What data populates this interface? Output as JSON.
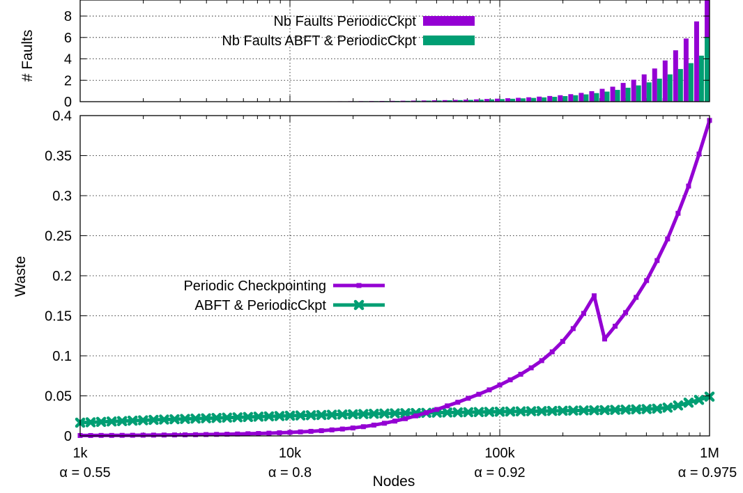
{
  "colors": {
    "purple": "#9400d3",
    "green": "#009e73"
  },
  "chart_data": [
    {
      "type": "bar",
      "ylabel": "# Faults",
      "ylim": [
        0,
        9.5
      ],
      "yticks": [
        "0",
        "2",
        "4",
        "6",
        "8"
      ],
      "x_log": true,
      "xlim": [
        1000,
        1000000
      ],
      "grid": true,
      "legend_position": "top-center",
      "x": [
        1000,
        1122,
        1259,
        1413,
        1585,
        1778,
        1995,
        2239,
        2512,
        2818,
        3162,
        3548,
        3981,
        4467,
        5012,
        5623,
        6310,
        7079,
        7943,
        8913,
        10000,
        11220,
        12589,
        14125,
        15849,
        17783,
        19953,
        22387,
        25119,
        28184,
        31623,
        35481,
        39811,
        44668,
        50119,
        56234,
        63096,
        70795,
        79433,
        89125,
        100000,
        112202,
        125893,
        141254,
        158489,
        177828,
        199526,
        223872,
        251189,
        281838,
        316228,
        354813,
        398107,
        446684,
        501187,
        562341,
        630957,
        707946,
        794328,
        891251,
        1000000
      ],
      "series": [
        {
          "name": "Nb Faults PeriodicCkpt",
          "color": "#9400d3",
          "values": [
            0.001,
            0.001,
            0.001,
            0.002,
            0.002,
            0.002,
            0.003,
            0.003,
            0.004,
            0.004,
            0.005,
            0.006,
            0.007,
            0.008,
            0.009,
            0.01,
            0.012,
            0.014,
            0.016,
            0.018,
            0.02,
            0.023,
            0.026,
            0.03,
            0.034,
            0.038,
            0.044,
            0.05,
            0.057,
            0.065,
            0.074,
            0.085,
            0.097,
            0.11,
            0.126,
            0.144,
            0.165,
            0.188,
            0.215,
            0.25,
            0.28,
            0.32,
            0.36,
            0.41,
            0.47,
            0.53,
            0.6,
            0.7,
            0.82,
            0.98,
            1.2,
            1.4,
            1.75,
            2.05,
            2.55,
            3.1,
            3.85,
            4.8,
            5.9,
            7.5,
            9.6
          ]
        },
        {
          "name": "Nb Faults ABFT & PeriodicCkpt",
          "color": "#009e73",
          "values": [
            0.001,
            0.001,
            0.001,
            0.001,
            0.002,
            0.002,
            0.002,
            0.003,
            0.003,
            0.004,
            0.004,
            0.005,
            0.006,
            0.007,
            0.008,
            0.009,
            0.01,
            0.012,
            0.014,
            0.016,
            0.018,
            0.02,
            0.023,
            0.026,
            0.03,
            0.034,
            0.038,
            0.044,
            0.05,
            0.057,
            0.065,
            0.074,
            0.085,
            0.097,
            0.11,
            0.126,
            0.144,
            0.165,
            0.188,
            0.21,
            0.24,
            0.27,
            0.31,
            0.35,
            0.4,
            0.45,
            0.52,
            0.6,
            0.68,
            0.8,
            0.94,
            1.1,
            1.3,
            1.52,
            1.8,
            2.15,
            2.55,
            3.05,
            3.6,
            4.3,
            6.05
          ]
        }
      ]
    },
    {
      "type": "line",
      "xlabel": "Nodes",
      "ylabel": "Waste",
      "ylim": [
        0,
        0.4
      ],
      "yticks": [
        "0",
        "0.05",
        "0.1",
        "0.15",
        "0.2",
        "0.25",
        "0.3",
        "0.35",
        "0.4"
      ],
      "x_log": true,
      "xlim": [
        1000,
        1000000
      ],
      "xticks": [
        {
          "value": 1000,
          "label": "1k",
          "alpha": "α = 0.55"
        },
        {
          "value": 10000,
          "label": "10k",
          "alpha": "α = 0.8"
        },
        {
          "value": 100000,
          "label": "100k",
          "alpha": "α = 0.92"
        },
        {
          "value": 1000000,
          "label": "1M",
          "alpha": "α = 0.975"
        }
      ],
      "grid": true,
      "legend_position": "center-left",
      "x": [
        1000,
        1122,
        1259,
        1413,
        1585,
        1778,
        1995,
        2239,
        2512,
        2818,
        3162,
        3548,
        3981,
        4467,
        5012,
        5623,
        6310,
        7079,
        7943,
        8913,
        10000,
        11220,
        12589,
        14125,
        15849,
        17783,
        19953,
        22387,
        25119,
        28184,
        31623,
        35481,
        39811,
        44668,
        50119,
        56234,
        63096,
        70795,
        79433,
        89125,
        100000,
        112202,
        125893,
        141254,
        158489,
        177828,
        199526,
        223872,
        251189,
        281838,
        316228,
        354813,
        398107,
        446684,
        501187,
        562341,
        630957,
        707946,
        794328,
        891251,
        1000000
      ],
      "series": [
        {
          "name": "Periodic Checkpointing",
          "color": "#9400d3",
          "marker": "square",
          "values": [
            0.0005,
            0.0005,
            0.0006,
            0.0006,
            0.0007,
            0.0008,
            0.0009,
            0.001,
            0.0011,
            0.0012,
            0.0013,
            0.0015,
            0.0017,
            0.0019,
            0.0021,
            0.0024,
            0.0027,
            0.003,
            0.0034,
            0.0039,
            0.0044,
            0.005,
            0.0057,
            0.0065,
            0.0075,
            0.0086,
            0.0099,
            0.0115,
            0.0135,
            0.0158,
            0.0185,
            0.0215,
            0.025,
            0.029,
            0.033,
            0.0375,
            0.042,
            0.047,
            0.052,
            0.0575,
            0.0635,
            0.07,
            0.077,
            0.085,
            0.094,
            0.105,
            0.118,
            0.134,
            0.153,
            0.175,
            0.121,
            0.137,
            0.154,
            0.173,
            0.194,
            0.219,
            0.246,
            0.278,
            0.312,
            0.352,
            0.394
          ]
        },
        {
          "name": "ABFT & PeriodicCkpt",
          "color": "#009e73",
          "marker": "cross",
          "values": [
            0.0165,
            0.017,
            0.0175,
            0.018,
            0.0185,
            0.019,
            0.0195,
            0.02,
            0.0204,
            0.0208,
            0.0212,
            0.0216,
            0.022,
            0.0224,
            0.0228,
            0.0232,
            0.0236,
            0.024,
            0.0244,
            0.0248,
            0.0252,
            0.0255,
            0.0258,
            0.0261,
            0.0264,
            0.0267,
            0.027,
            0.0273,
            0.0276,
            0.0279,
            0.0282,
            0.0284,
            0.0286,
            0.0288,
            0.029,
            0.0292,
            0.0294,
            0.0296,
            0.0298,
            0.03,
            0.0302,
            0.0304,
            0.0306,
            0.0308,
            0.031,
            0.0312,
            0.0314,
            0.0316,
            0.0318,
            0.032,
            0.0322,
            0.0325,
            0.0328,
            0.0331,
            0.0335,
            0.034,
            0.0353,
            0.038,
            0.0415,
            0.045,
            0.049
          ]
        }
      ]
    }
  ]
}
